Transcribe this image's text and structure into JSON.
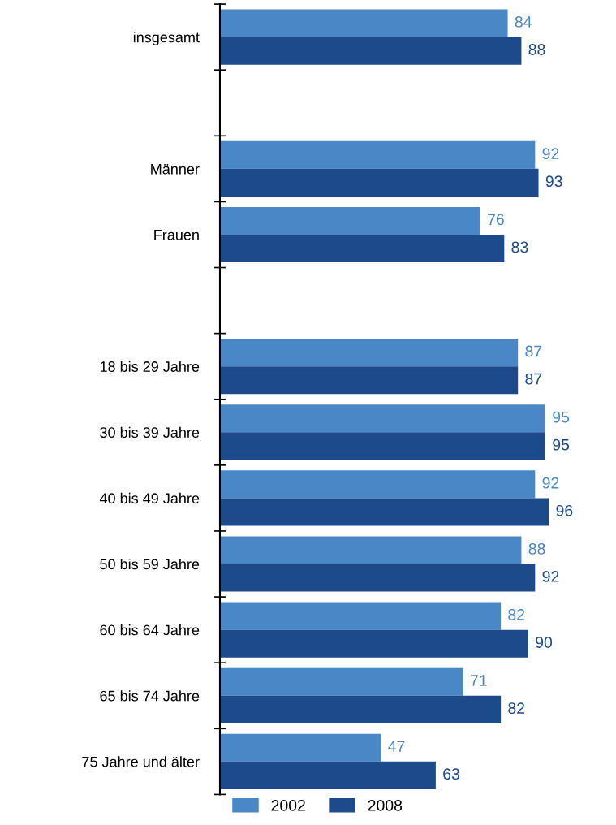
{
  "chart_data": {
    "type": "bar",
    "orientation": "horizontal",
    "categories": [
      "insgesamt",
      null,
      "Männer",
      "Frauen",
      null,
      "18 bis 29 Jahre",
      "30 bis 39 Jahre",
      "40 bis 49 Jahre",
      "50 bis 59 Jahre",
      "60 bis 64 Jahre",
      "65 bis 74 Jahre",
      "75 Jahre und älter"
    ],
    "series": [
      {
        "name": "2002",
        "color": "#4a87c7",
        "values": [
          84,
          null,
          92,
          76,
          null,
          87,
          95,
          92,
          88,
          82,
          71,
          47
        ]
      },
      {
        "name": "2008",
        "color": "#1d4a8a",
        "values": [
          88,
          null,
          93,
          83,
          null,
          87,
          95,
          96,
          92,
          90,
          82,
          63
        ]
      }
    ],
    "data_labels": true,
    "legend": "bottom",
    "tick_labels": "y",
    "grid": false
  }
}
